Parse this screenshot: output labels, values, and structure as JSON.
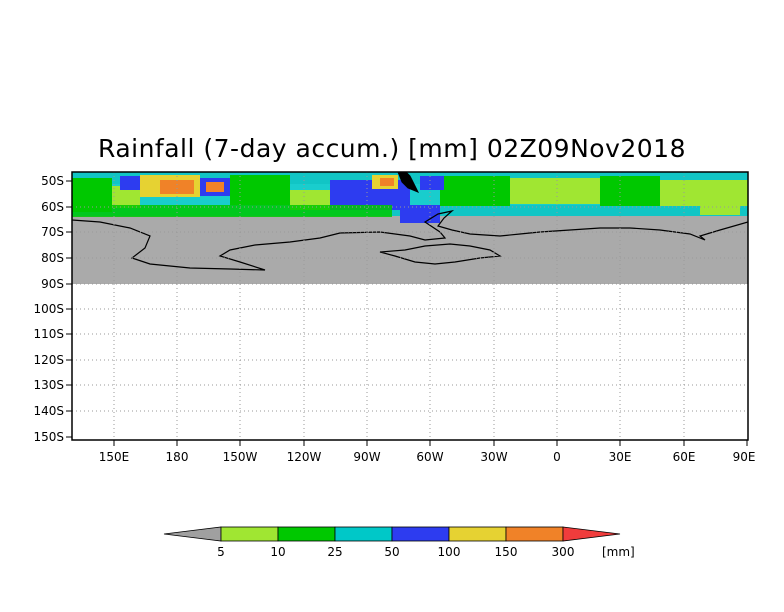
{
  "title": "Rainfall (7-day accum.) [mm] 02Z09Nov2018",
  "map": {
    "lat_labels": [
      "50S",
      "60S",
      "70S",
      "80S",
      "90S",
      "100S",
      "110S",
      "120S",
      "130S",
      "140S",
      "150S"
    ],
    "lon_labels": [
      "150E",
      "180",
      "150W",
      "120W",
      "90W",
      "60W",
      "30W",
      "0",
      "30E",
      "60E",
      "90E"
    ],
    "no_data_color": "#aaaaaa",
    "coastline_color": "#000000"
  },
  "legend": {
    "unit": "[mm]",
    "ticks": [
      "5",
      "10",
      "25",
      "50",
      "100",
      "150",
      "300"
    ],
    "colors": [
      "#a0a0a0",
      "#a0e632",
      "#00c800",
      "#00c8c8",
      "#2d3cf0",
      "#e6d232",
      "#f08228",
      "#f03c3c"
    ]
  }
}
